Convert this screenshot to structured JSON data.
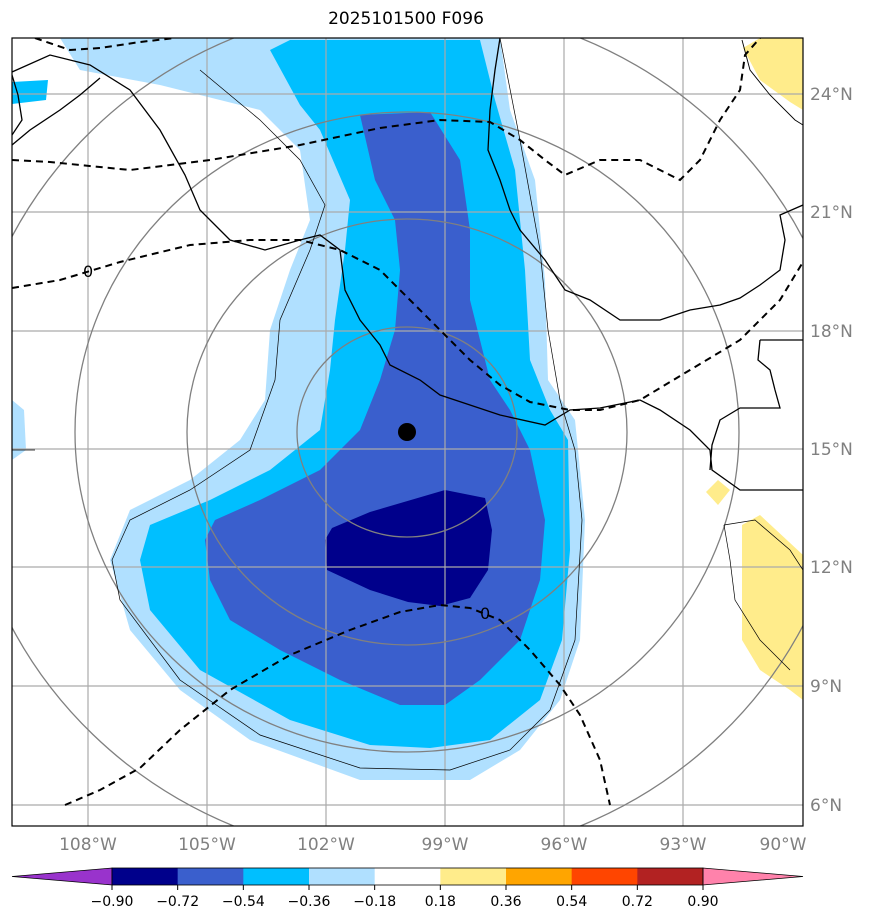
{
  "title": "2025101500 F096",
  "lat_ticks": [
    "24°N",
    "21°N",
    "18°N",
    "15°N",
    "12°N",
    "9°N",
    "6°N"
  ],
  "lon_ticks": [
    "108°W",
    "105°W",
    "102°W",
    "99°W",
    "96°W",
    "93°W",
    "90°W"
  ],
  "colorbar": {
    "ticks": [
      "−0.90",
      "−0.72",
      "−0.54",
      "−0.36",
      "−0.18",
      "0.18",
      "0.36",
      "0.54",
      "0.72",
      "0.90"
    ],
    "colors": [
      "#9933cc",
      "#00008b",
      "#3a5fcd",
      "#00bfff",
      "#b0e0ff",
      "#ffffff",
      "#ffec8b",
      "#ffa500",
      "#ff4500",
      "#b22222",
      "#ff82ab"
    ]
  },
  "contour_label": "0",
  "center_marker": {
    "lat": 15.5,
    "lon": -100.0
  },
  "colors": {
    "dark_negative": "#00008b",
    "mid_negative": "#3a5fcd",
    "light_negative": "#00bfff",
    "faint_negative": "#b0e0ff",
    "faint_positive": "#ffec8b",
    "grid": "#aaaaaa",
    "range_rings": "#808080"
  }
}
